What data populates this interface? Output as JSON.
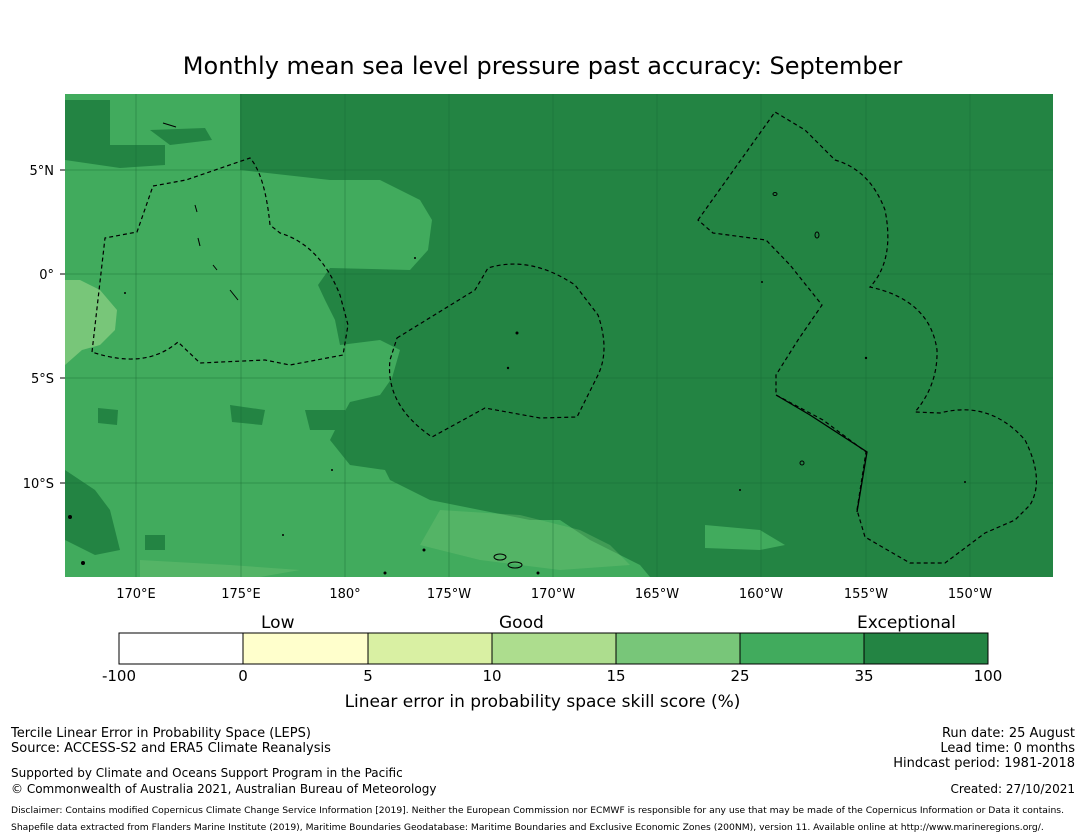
{
  "title": "Monthly mean sea level pressure past accuracy: September",
  "map": {
    "lat_labels": [
      "5°N",
      "0°",
      "5°S",
      "10°S"
    ],
    "lon_labels": [
      "170°E",
      "175°E",
      "180°",
      "175°W",
      "170°W",
      "165°W",
      "160°W",
      "155°W",
      "150°W"
    ],
    "colors": {
      "exceptional": "#238443",
      "band_25_35": "#41ab5d",
      "band_15_25": "#78c679",
      "coastline": "#000000"
    }
  },
  "colorbar": {
    "categories": [
      "Low",
      "Good",
      "Exceptional"
    ],
    "ticks": [
      "-100",
      "0",
      "5",
      "10",
      "15",
      "25",
      "35",
      "100"
    ],
    "colors": [
      "#ffffff",
      "#ffffcc",
      "#d9f0a3",
      "#addd8e",
      "#78c679",
      "#41ab5d",
      "#238443"
    ],
    "label": "Linear error in probability space skill score (%)"
  },
  "footer": {
    "left1": "Tercile Linear Error in Probability Space (LEPS)",
    "left2": "Source: ACCESS-S2 and ERA5 Climate Reanalysis",
    "left3": "Supported by Climate and Oceans Support Program in the Pacific",
    "left4": "© Commonwealth of Australia 2021, Australian Bureau of Meteorology",
    "right1": "Run date: 25 August",
    "right2": "Lead time: 0 months",
    "right3": "Hindcast period: 1981-2018",
    "created": "Created: 27/10/2021",
    "disclaimer1": "Disclaimer: Contains modified Copernicus Climate Change Service Information [2019]. Neither the European Commission nor ECMWF is responsible for any use that may be made of the Copernicus Information or Data it contains.",
    "disclaimer2": "Shapefile data extracted from Flanders Marine Institute (2019), Maritime Boundaries Geodatabase: Maritime Boundaries and Exclusive Economic Zones (200NM), version 11. Available online at http://www.marineregions.org/."
  }
}
